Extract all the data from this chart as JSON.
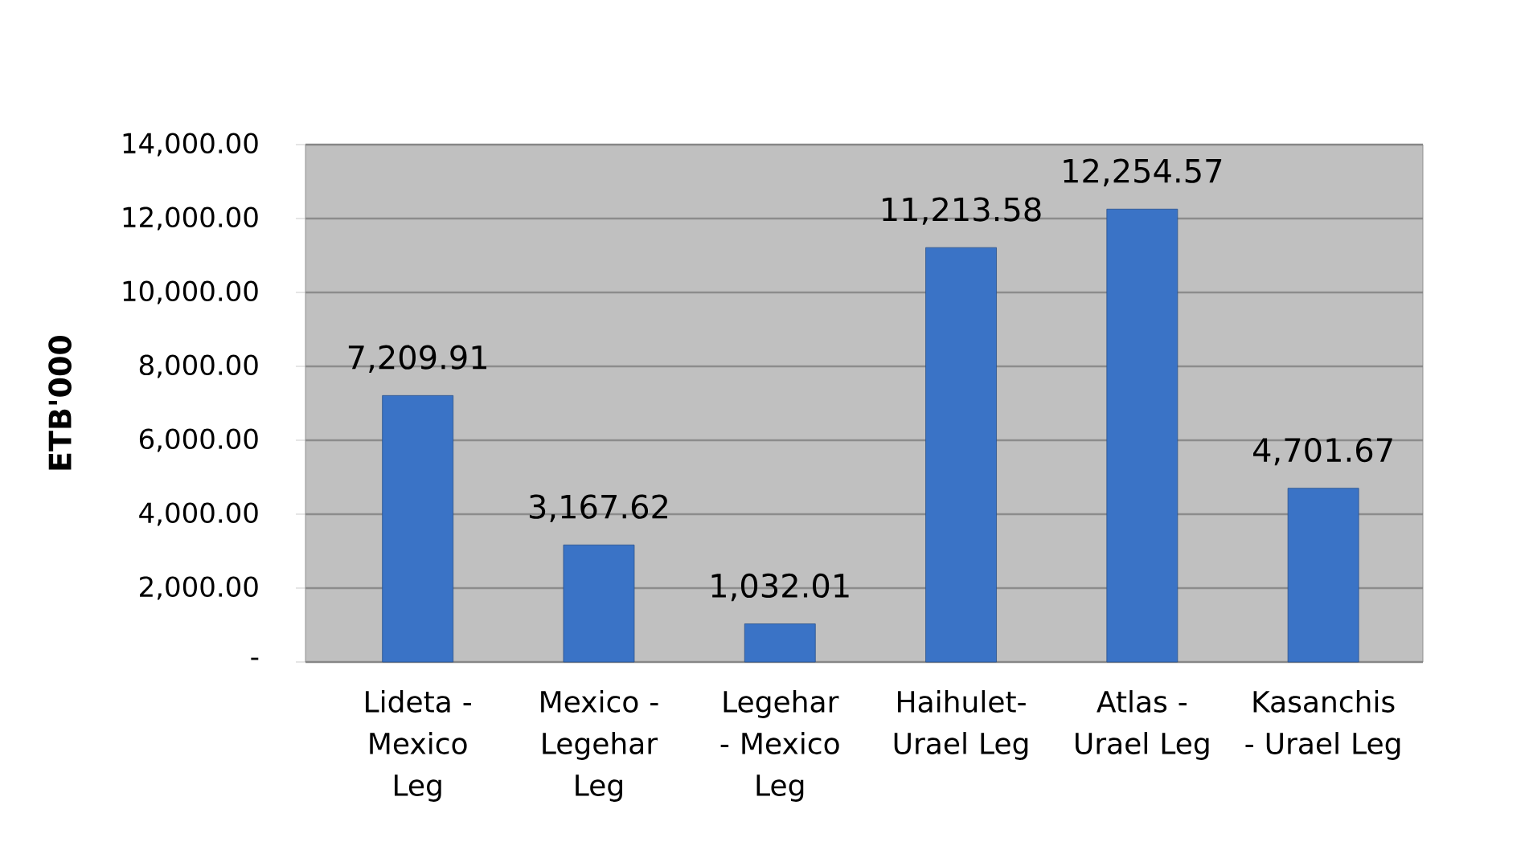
{
  "chart_data": {
    "type": "bar",
    "categories": [
      "Lideta - Mexico Leg",
      "Mexico - Legehar Leg",
      "Legehar - Mexico Leg",
      "Haihulet- Urael Leg",
      "Atlas - Urael Leg",
      "Kasanchis - Urael Leg"
    ],
    "values": [
      7209.91,
      3167.62,
      1032.01,
      11213.58,
      12254.57,
      4701.67
    ],
    "value_labels": [
      "7,209.91",
      "3,167.62",
      "1,032.01",
      "11,213.58",
      "12,254.57",
      "4,701.67"
    ],
    "color": "#3a73c6",
    "ylabel": "ETB'000",
    "ylim": [
      0,
      14000
    ],
    "yticks": [
      {
        "value": 0,
        "label": "-"
      },
      {
        "value": 2000,
        "label": "2,000.00"
      },
      {
        "value": 4000,
        "label": "4,000.00"
      },
      {
        "value": 6000,
        "label": "6,000.00"
      },
      {
        "value": 8000,
        "label": "8,000.00"
      },
      {
        "value": 10000,
        "label": "10,000.00"
      },
      {
        "value": 12000,
        "label": "12,000.00"
      },
      {
        "value": 14000,
        "label": "14,000.00"
      }
    ],
    "grid": "y"
  }
}
